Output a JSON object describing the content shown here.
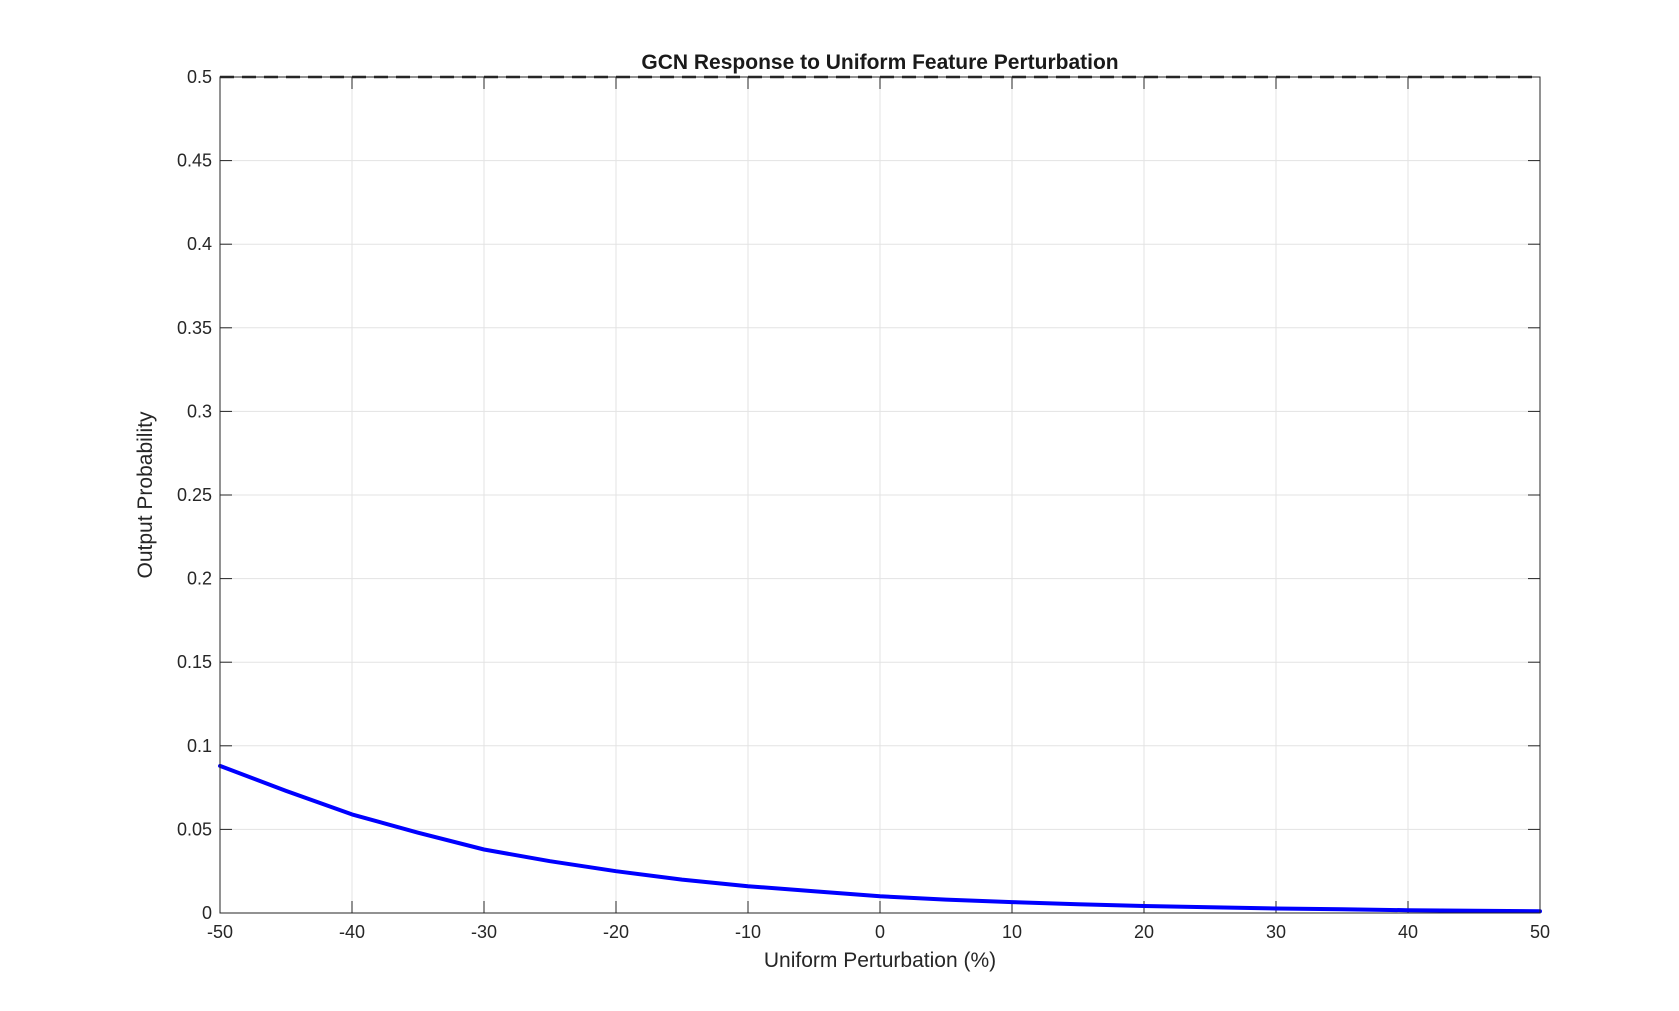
{
  "chart_data": {
    "type": "line",
    "title": "GCN Response to Uniform Feature Perturbation",
    "xlabel": "Uniform Perturbation (%)",
    "ylabel": "Output Probability",
    "xlim": [
      -50,
      50
    ],
    "ylim": [
      0,
      0.5
    ],
    "xticks": [
      -50,
      -40,
      -30,
      -20,
      -10,
      0,
      10,
      20,
      30,
      40,
      50
    ],
    "xtick_labels": [
      "-50",
      "-40",
      "-30",
      "-20",
      "-10",
      "0",
      "10",
      "20",
      "30",
      "40",
      "50"
    ],
    "yticks": [
      0,
      0.05,
      0.1,
      0.15,
      0.2,
      0.25,
      0.3,
      0.35,
      0.4,
      0.45,
      0.5
    ],
    "ytick_labels": [
      "0",
      "0.05",
      "0.1",
      "0.15",
      "0.2",
      "0.25",
      "0.3",
      "0.35",
      "0.4",
      "0.45",
      "0.5"
    ],
    "grid": true,
    "series": [
      {
        "style": "solid",
        "color": "#0000ff",
        "x": [
          -50,
          -45,
          -40,
          -35,
          -30,
          -25,
          -20,
          -15,
          -10,
          -5,
          0,
          5,
          10,
          15,
          20,
          25,
          30,
          35,
          40,
          45,
          50
        ],
        "y": [
          0.088,
          0.073,
          0.059,
          0.048,
          0.038,
          0.031,
          0.025,
          0.02,
          0.016,
          0.013,
          0.01,
          0.008,
          0.0065,
          0.0052,
          0.0042,
          0.0034,
          0.0027,
          0.0022,
          0.0017,
          0.0014,
          0.0011
        ]
      },
      {
        "style": "dashed",
        "color": "#262626",
        "x": [
          -50,
          50
        ],
        "y": [
          0.5,
          0.5
        ]
      }
    ]
  }
}
